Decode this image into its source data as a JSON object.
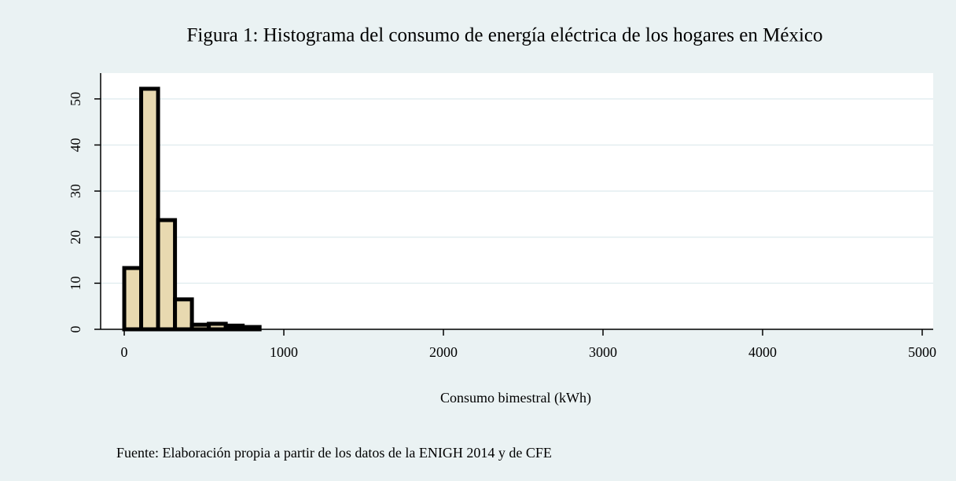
{
  "chart_data": {
    "type": "histogram",
    "title": "Figura 1: Histograma del consumo de energía eléctrica de los hogares en México",
    "x_label": "Consumo bimestral (kWh)",
    "note": "Fuente: Elaboración propia a partir de los datos de la ENIGH 2014 y de CFE",
    "bins": [
      0,
      106,
      212,
      318,
      424,
      530,
      636,
      742,
      848
    ],
    "counts": [
      13.3,
      52.2,
      23.7,
      6.5,
      1,
      1.2,
      0.8,
      0.5
    ],
    "color": "#e8d9b0",
    "edge_color": "#000000",
    "xlim": [
      -148,
      5069
    ],
    "xticks": [
      0,
      1000,
      2000,
      3000,
      4000,
      5000
    ],
    "ylim": [
      0,
      55.6
    ],
    "yticks": [
      0,
      10,
      20,
      30,
      40,
      50
    ],
    "grid": true
  }
}
